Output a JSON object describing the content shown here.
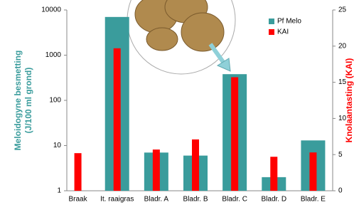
{
  "chart_data": {
    "type": "bar",
    "categories": [
      "Braak",
      "It. raaigras",
      "Bladr. A",
      "Bladr. B",
      "Bladr. C",
      "Bladr. D",
      "Bladr. E"
    ],
    "series": [
      {
        "name": "Pf Melo",
        "color": "#3a9c9c",
        "values": [
          null,
          7000,
          7,
          6,
          380,
          2,
          13
        ]
      },
      {
        "name": "KAI",
        "color": "#ff0000",
        "axis": "y2",
        "values": [
          5.2,
          19.7,
          5.7,
          7.1,
          15.7,
          4.7,
          5.3
        ]
      }
    ],
    "ylabel": [
      "Meloidogyne besmetting",
      "(J/100 ml grond)"
    ],
    "y2label": "Knolaantasting (KAI)",
    "ylog": true,
    "ylim": [
      1,
      10000
    ],
    "yticks": [
      1,
      10,
      100,
      1000,
      10000
    ],
    "y2lim": [
      0,
      25
    ],
    "y2ticks": [
      0,
      5,
      10,
      15,
      20,
      25
    ],
    "legend": "top-right"
  }
}
